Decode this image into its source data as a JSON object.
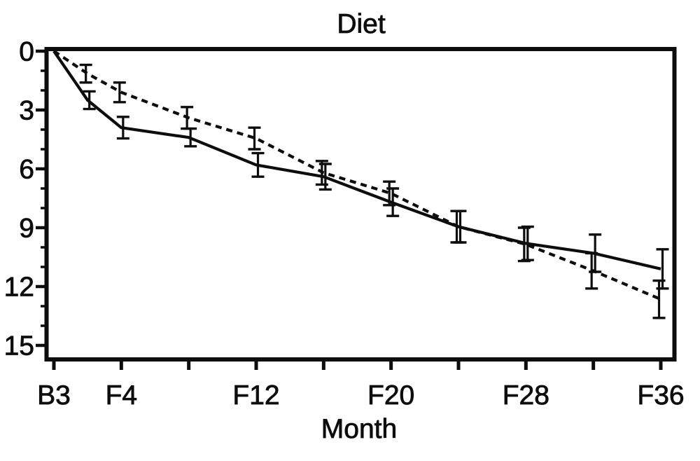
{
  "chart_data": {
    "type": "line",
    "title": "Diet",
    "xlabel": "Month",
    "ylabel": "",
    "legend_position": "none",
    "grid": false,
    "background_color": "#ffffff",
    "ink_color": "#0d0d0d",
    "x_months": [
      0,
      2,
      4,
      8,
      12,
      16,
      20,
      24,
      28,
      32,
      36
    ],
    "x_axis": {
      "tick_positions_months": [
        0,
        4,
        8,
        12,
        16,
        20,
        24,
        28,
        32,
        36
      ],
      "tick_labels": [
        "B3",
        "F4",
        "",
        "F12",
        "",
        "F20",
        "",
        "F28",
        "",
        "F36"
      ],
      "range_months": [
        0,
        37.5
      ]
    },
    "y_axis": {
      "major_ticks": [
        0,
        3,
        6,
        9,
        12,
        15
      ],
      "major_tick_labels": [
        "0",
        "3",
        "6",
        "9",
        "12",
        "15"
      ],
      "minor_tick_step": 1,
      "range": [
        0,
        15
      ],
      "orientation": "values-increase-downward"
    },
    "series": [
      {
        "name": "solid-line-series",
        "line_style": "solid",
        "marker": "error-bars",
        "values": [
          0,
          2.5,
          3.9,
          4.4,
          5.8,
          6.4,
          7.7,
          8.95,
          9.8,
          10.3,
          11.1
        ],
        "error_half": [
          null,
          0.45,
          0.55,
          0.45,
          0.6,
          0.65,
          0.7,
          0.8,
          0.85,
          0.95,
          1.0
        ]
      },
      {
        "name": "dashed-line-series",
        "line_style": "dashed",
        "marker": "error-bars",
        "values": [
          0,
          1.15,
          2.1,
          3.4,
          4.45,
          6.2,
          7.25,
          8.95,
          9.85,
          11.2,
          12.65
        ],
        "error_half": [
          null,
          0.45,
          0.5,
          0.55,
          0.55,
          0.6,
          0.6,
          0.8,
          0.85,
          0.9,
          0.95
        ]
      }
    ]
  }
}
